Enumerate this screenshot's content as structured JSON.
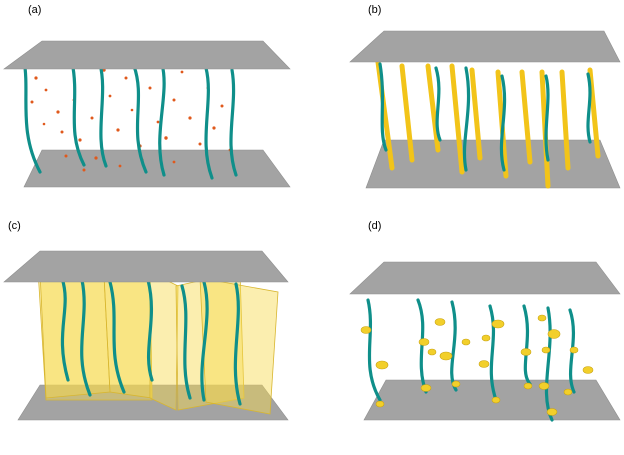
{
  "figure": {
    "panels": [
      {
        "id": "a",
        "label": "(a)"
      },
      {
        "id": "b",
        "label": "(b)"
      },
      {
        "id": "c",
        "label": "(c)"
      },
      {
        "id": "d",
        "label": "(d)"
      }
    ]
  },
  "colors": {
    "plate": "#a3a3a3",
    "fiber": "#0f8f8a",
    "particle": "#e0591c",
    "defect": "#f2c419",
    "sheet": "#f7d94d"
  }
}
